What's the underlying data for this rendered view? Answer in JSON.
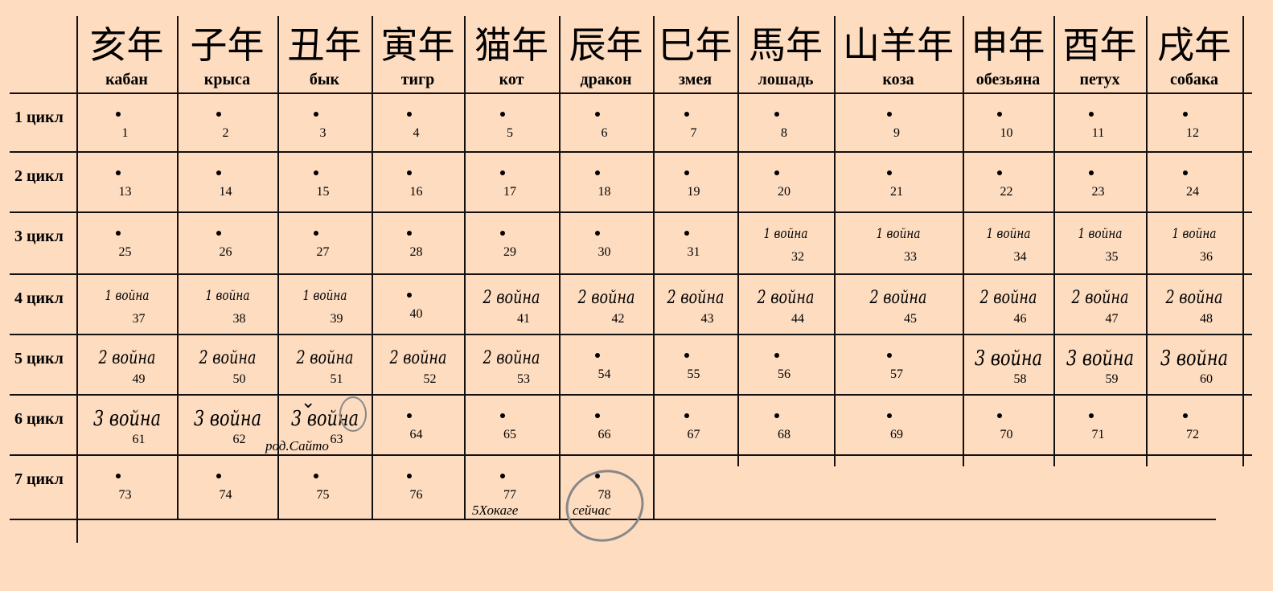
{
  "columns": [
    {
      "cjk": "亥年",
      "ru": "кабан"
    },
    {
      "cjk": "子年",
      "ru": "крыса"
    },
    {
      "cjk": "丑年",
      "ru": "бык"
    },
    {
      "cjk": "寅年",
      "ru": "тигр"
    },
    {
      "cjk": "猫年",
      "ru": "кот"
    },
    {
      "cjk": "辰年",
      "ru": "дракон"
    },
    {
      "cjk": "巳年",
      "ru": "змея"
    },
    {
      "cjk": "馬年",
      "ru": "лошадь"
    },
    {
      "cjk": "山羊年",
      "ru": "коза"
    },
    {
      "cjk": "申年",
      "ru": "обезьяна"
    },
    {
      "cjk": "酉年",
      "ru": "петух"
    },
    {
      "cjk": "戌年",
      "ru": "собака"
    }
  ],
  "rows": [
    {
      "label": "1 цикл",
      "cells": [
        {
          "n": "1"
        },
        {
          "n": "2"
        },
        {
          "n": "3"
        },
        {
          "n": "4"
        },
        {
          "n": "5"
        },
        {
          "n": "6"
        },
        {
          "n": "7"
        },
        {
          "n": "8"
        },
        {
          "n": "9"
        },
        {
          "n": "10"
        },
        {
          "n": "11"
        },
        {
          "n": "12"
        }
      ]
    },
    {
      "label": "2 цикл",
      "cells": [
        {
          "n": "13"
        },
        {
          "n": "14"
        },
        {
          "n": "15"
        },
        {
          "n": "16"
        },
        {
          "n": "17"
        },
        {
          "n": "18"
        },
        {
          "n": "19"
        },
        {
          "n": "20"
        },
        {
          "n": "21"
        },
        {
          "n": "22"
        },
        {
          "n": "23"
        },
        {
          "n": "24"
        }
      ]
    },
    {
      "label": "3 цикл",
      "cells": [
        {
          "n": "25"
        },
        {
          "n": "26"
        },
        {
          "n": "27"
        },
        {
          "n": "28"
        },
        {
          "n": "29"
        },
        {
          "n": "30"
        },
        {
          "n": "31"
        },
        {
          "n": "32",
          "war": "1 война",
          "w": 1
        },
        {
          "n": "33",
          "war": "1 война",
          "w": 1
        },
        {
          "n": "34",
          "war": "1 война",
          "w": 1
        },
        {
          "n": "35",
          "war": "1 война",
          "w": 1
        },
        {
          "n": "36",
          "war": "1 война",
          "w": 1
        }
      ]
    },
    {
      "label": "4 цикл",
      "cells": [
        {
          "n": "37",
          "war": "1 война",
          "w": 1
        },
        {
          "n": "38",
          "war": "1 война",
          "w": 1
        },
        {
          "n": "39",
          "war": "1 война",
          "w": 1
        },
        {
          "n": "40"
        },
        {
          "n": "41",
          "war": "2 война",
          "w": 2
        },
        {
          "n": "42",
          "war": "2 война",
          "w": 2
        },
        {
          "n": "43",
          "war": "2 война",
          "w": 2
        },
        {
          "n": "44",
          "war": "2 война",
          "w": 2
        },
        {
          "n": "45",
          "war": "2 война",
          "w": 2
        },
        {
          "n": "46",
          "war": "2 война",
          "w": 2
        },
        {
          "n": "47",
          "war": "2 война",
          "w": 2
        },
        {
          "n": "48",
          "war": "2 война",
          "w": 2
        }
      ]
    },
    {
      "label": "5 цикл",
      "cells": [
        {
          "n": "49",
          "war": "2 война",
          "w": 2
        },
        {
          "n": "50",
          "war": "2 война",
          "w": 2
        },
        {
          "n": "51",
          "war": "2 война",
          "w": 2
        },
        {
          "n": "52",
          "war": "2 война",
          "w": 2
        },
        {
          "n": "53",
          "war": "2 война",
          "w": 2
        },
        {
          "n": "54"
        },
        {
          "n": "55"
        },
        {
          "n": "56"
        },
        {
          "n": "57"
        },
        {
          "n": "58",
          "war": "3 война",
          "w": 3
        },
        {
          "n": "59",
          "war": "3 война",
          "w": 3
        },
        {
          "n": "60",
          "war": "3 война",
          "w": 3
        }
      ]
    },
    {
      "label": "6 цикл",
      "cells": [
        {
          "n": "61",
          "war": "3 война",
          "w": 3
        },
        {
          "n": "62",
          "war": "3 война",
          "w": 3
        },
        {
          "n": "63",
          "war": "3 война",
          "w": 3
        },
        {
          "n": "64"
        },
        {
          "n": "65"
        },
        {
          "n": "66"
        },
        {
          "n": "67"
        },
        {
          "n": "68"
        },
        {
          "n": "69"
        },
        {
          "n": "70"
        },
        {
          "n": "71"
        },
        {
          "n": "72"
        }
      ]
    },
    {
      "label": "7 цикл",
      "cells": [
        {
          "n": "73"
        },
        {
          "n": "74"
        },
        {
          "n": "75"
        },
        {
          "n": "76"
        },
        {
          "n": "77"
        },
        {
          "n": "78"
        },
        {},
        {},
        {},
        {},
        {},
        {}
      ]
    }
  ],
  "notes": {
    "saito": "род.Сайто",
    "hokage": "5Хокаге",
    "now": "сейчас"
  }
}
